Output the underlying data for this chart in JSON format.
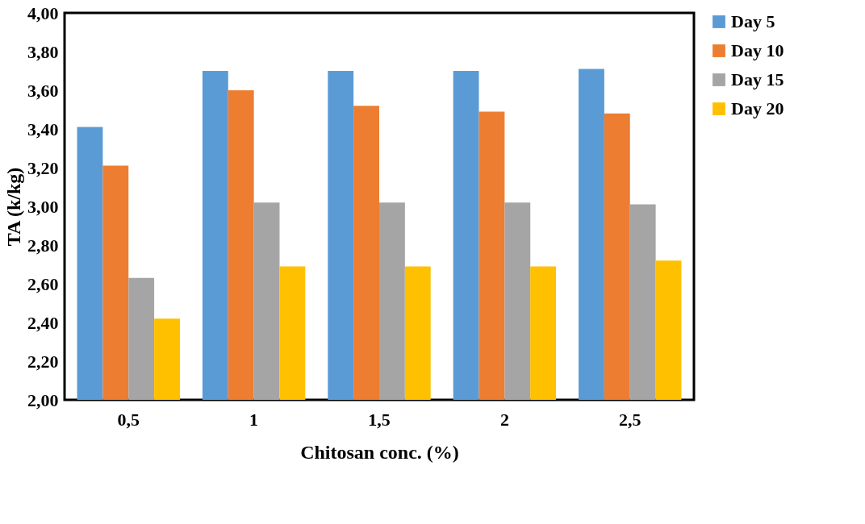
{
  "chart_data": {
    "type": "bar",
    "xlabel": "Chitosan conc. (%)",
    "ylabel": "TA (k/kg)",
    "categories": [
      "0,5",
      "1",
      "1,5",
      "2",
      "2,5"
    ],
    "series": [
      {
        "name": "Day 5",
        "color": "#5b9bd5",
        "values": [
          3.41,
          3.7,
          3.7,
          3.7,
          3.71
        ]
      },
      {
        "name": "Day 10",
        "color": "#ed7d31",
        "values": [
          3.21,
          3.6,
          3.52,
          3.49,
          3.48
        ]
      },
      {
        "name": "Day 15",
        "color": "#a5a5a5",
        "values": [
          2.63,
          3.02,
          3.02,
          3.02,
          3.01
        ]
      },
      {
        "name": "Day 20",
        "color": "#ffc000",
        "values": [
          2.42,
          2.69,
          2.69,
          2.69,
          2.72
        ]
      }
    ],
    "ylim": [
      2.0,
      4.0
    ],
    "yticks": [
      {
        "value": 2.0,
        "label": "2,00"
      },
      {
        "value": 2.2,
        "label": "2,20"
      },
      {
        "value": 2.4,
        "label": "2,40"
      },
      {
        "value": 2.6,
        "label": "2,60"
      },
      {
        "value": 2.8,
        "label": "2,80"
      },
      {
        "value": 3.0,
        "label": "3,00"
      },
      {
        "value": 3.2,
        "label": "3,20"
      },
      {
        "value": 3.4,
        "label": "3,40"
      },
      {
        "value": 3.6,
        "label": "3,60"
      },
      {
        "value": 3.8,
        "label": "3,80"
      },
      {
        "value": 4.0,
        "label": "4,00"
      }
    ],
    "grid": false,
    "legend": "right"
  }
}
